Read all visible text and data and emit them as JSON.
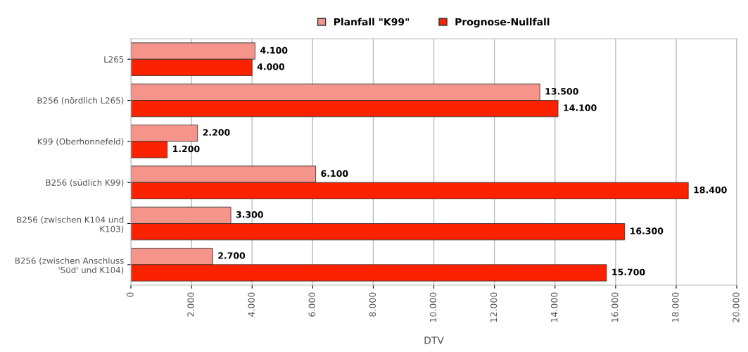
{
  "chart_data": {
    "type": "bar",
    "orientation": "horizontal",
    "xlabel": "DTV",
    "categories": [
      "L265",
      "B256 (nördlich L265)",
      "K99 (Oberhonnefeld)",
      "B256 (südlich K99)",
      "B256 (zwischen K104 und\nK103)",
      "B256 (zwischen Anschluss\n'Süd' und K104)"
    ],
    "series": [
      {
        "name": "Planfall \"K99\"",
        "color": "#f4948a",
        "values": [
          4100,
          13500,
          2200,
          6100,
          3300,
          2700
        ],
        "value_labels": [
          "4.100",
          "13.500",
          "2.200",
          "6.100",
          "3.300",
          "2.700"
        ]
      },
      {
        "name": "Prognose-Nullfall",
        "color": "#fa2200",
        "values": [
          4000,
          14100,
          1200,
          18400,
          16300,
          15700
        ],
        "value_labels": [
          "4.000",
          "14.100",
          "1.200",
          "18.400",
          "16.300",
          "15.700"
        ]
      }
    ],
    "xlim": [
      0,
      20000
    ],
    "xticks": [
      0,
      {
        "value": 2000,
        "label": "2.000"
      },
      {
        "value": 4000,
        "label": "4.000"
      },
      {
        "value": 6000,
        "label": "6.000"
      },
      {
        "value": 8000,
        "label": "8.000"
      },
      {
        "value": 10000,
        "label": "10.000"
      },
      {
        "value": 12000,
        "label": "12.000"
      },
      {
        "value": 14000,
        "label": "14.000"
      },
      {
        "value": 16000,
        "label": "16.000"
      },
      {
        "value": 18000,
        "label": "18.000"
      },
      {
        "value": 20000,
        "label": "20.000"
      }
    ],
    "grid": "x",
    "legend": "top"
  }
}
